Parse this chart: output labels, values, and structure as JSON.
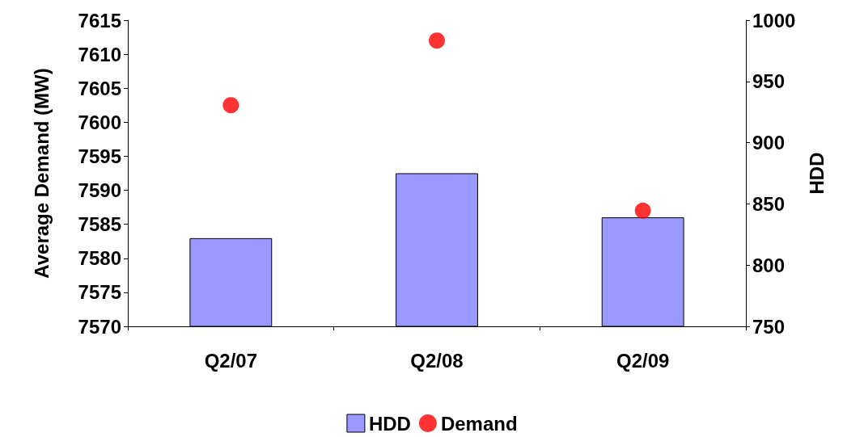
{
  "chart_data": {
    "type": "bar",
    "ylabel": "Average Demand (MW)",
    "y2label": "HDD",
    "categories": [
      "Q2/07",
      "Q2/08",
      "Q2/09"
    ],
    "series": [
      {
        "name": "HDD",
        "axis": "y2",
        "color": "#9999ff",
        "values": [
          822,
          875,
          839
        ]
      },
      {
        "name": "Demand",
        "type": "scatter",
        "axis": "y",
        "color": "#ff0000",
        "values": [
          7602.5,
          7612,
          7587
        ]
      }
    ],
    "ylim": [
      7570,
      7615
    ],
    "yticks": [
      7570,
      7575,
      7580,
      7585,
      7590,
      7595,
      7600,
      7605,
      7610,
      7615
    ],
    "y2lim": [
      750,
      1000
    ],
    "y2ticks": [
      750,
      800,
      850,
      900,
      950,
      1000
    ],
    "grid": false,
    "legend": "bottom",
    "marker": "circle"
  }
}
